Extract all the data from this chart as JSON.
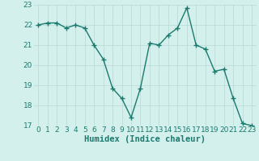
{
  "x": [
    0,
    1,
    2,
    3,
    4,
    5,
    6,
    7,
    8,
    9,
    10,
    11,
    12,
    13,
    14,
    15,
    16,
    17,
    18,
    19,
    20,
    21,
    22,
    23
  ],
  "y": [
    22.0,
    22.1,
    22.1,
    21.85,
    22.0,
    21.85,
    21.0,
    20.3,
    18.85,
    18.35,
    17.4,
    18.85,
    21.1,
    21.0,
    21.5,
    21.85,
    22.85,
    21.0,
    20.8,
    19.7,
    19.8,
    18.35,
    17.1,
    17.0
  ],
  "line_color": "#1a7a6e",
  "marker": "+",
  "marker_size": 4,
  "linewidth": 1.0,
  "xlabel": "Humidex (Indice chaleur)",
  "xlabel_fontsize": 7.5,
  "background_color": "#d4f0ec",
  "grid_color": "#b8d8d4",
  "xlim": [
    -0.5,
    23.5
  ],
  "ylim": [
    17,
    23
  ],
  "xticks": [
    0,
    1,
    2,
    3,
    4,
    5,
    6,
    7,
    8,
    9,
    10,
    11,
    12,
    13,
    14,
    15,
    16,
    17,
    18,
    19,
    20,
    21,
    22,
    23
  ],
  "yticks": [
    17,
    18,
    19,
    20,
    21,
    22,
    23
  ],
  "tick_fontsize": 6.5
}
